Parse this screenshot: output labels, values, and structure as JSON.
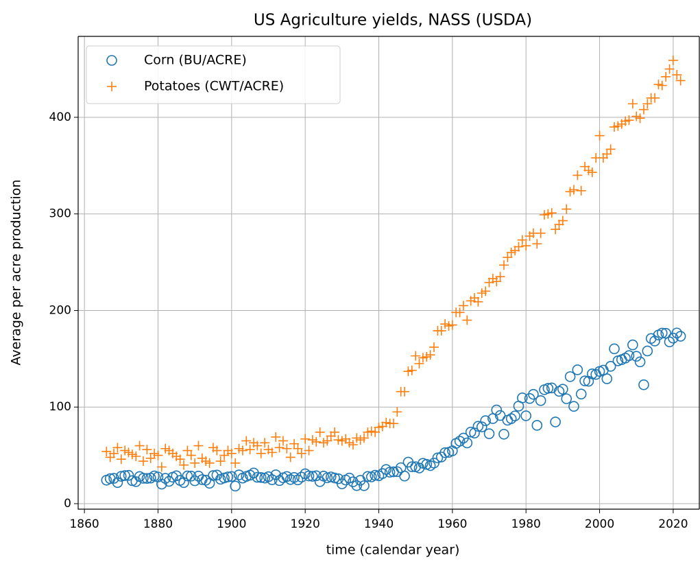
{
  "chart_data": {
    "type": "scatter",
    "title": "US Agriculture yields, NASS (USDA)",
    "x_label": "time (calendar year)",
    "y_label": "Average per acre production",
    "x": [
      1866,
      1867,
      1868,
      1869,
      1870,
      1871,
      1872,
      1873,
      1874,
      1875,
      1876,
      1877,
      1878,
      1879,
      1880,
      1881,
      1882,
      1883,
      1884,
      1885,
      1886,
      1887,
      1888,
      1889,
      1890,
      1891,
      1892,
      1893,
      1894,
      1895,
      1896,
      1897,
      1898,
      1899,
      1900,
      1901,
      1902,
      1903,
      1904,
      1905,
      1906,
      1907,
      1908,
      1909,
      1910,
      1911,
      1912,
      1913,
      1914,
      1915,
      1916,
      1917,
      1918,
      1919,
      1920,
      1921,
      1922,
      1923,
      1924,
      1925,
      1926,
      1927,
      1928,
      1929,
      1930,
      1931,
      1932,
      1933,
      1934,
      1935,
      1936,
      1937,
      1938,
      1939,
      1940,
      1941,
      1942,
      1943,
      1944,
      1945,
      1946,
      1947,
      1948,
      1949,
      1950,
      1951,
      1952,
      1953,
      1954,
      1955,
      1956,
      1957,
      1958,
      1959,
      1960,
      1961,
      1962,
      1963,
      1964,
      1965,
      1966,
      1967,
      1968,
      1969,
      1970,
      1971,
      1972,
      1973,
      1974,
      1975,
      1976,
      1977,
      1978,
      1979,
      1980,
      1981,
      1982,
      1983,
      1984,
      1985,
      1986,
      1987,
      1988,
      1989,
      1990,
      1991,
      1992,
      1993,
      1994,
      1995,
      1996,
      1997,
      1998,
      1999,
      2000,
      2001,
      2002,
      2003,
      2004,
      2005,
      2006,
      2007,
      2008,
      2009,
      2010,
      2011,
      2012,
      2013,
      2014,
      2015,
      2016,
      2017,
      2018,
      2019,
      2020,
      2021,
      2022
    ],
    "series": [
      {
        "name": "Corn (BU/ACRE)",
        "color": "#1f77b4",
        "marker": "o",
        "values": [
          24.3,
          25.9,
          26.2,
          21.8,
          28.3,
          29.1,
          29.3,
          23.8,
          22.8,
          28.1,
          26.3,
          26.1,
          26.5,
          28.7,
          27.6,
          20.2,
          26.2,
          23.1,
          27.4,
          28.9,
          24.1,
          21.8,
          28.7,
          28.5,
          23.7,
          28.5,
          24.9,
          24.3,
          21.1,
          29.1,
          29.6,
          25.3,
          26.6,
          27.7,
          28.1,
          18.2,
          29.8,
          26.5,
          28.2,
          29.5,
          31.7,
          27.3,
          27.1,
          26.5,
          27.9,
          24.8,
          29.9,
          23.9,
          26.8,
          28.1,
          25.0,
          27.1,
          24.6,
          27.5,
          30.9,
          28.7,
          28.3,
          28.9,
          22.8,
          28.5,
          26.8,
          27.7,
          26.6,
          25.8,
          20.5,
          24.5,
          26.5,
          22.6,
          18.7,
          24.2,
          18.6,
          28.2,
          27.7,
          29.4,
          28.9,
          31.2,
          35.4,
          32.6,
          33.0,
          33.1,
          37.2,
          28.6,
          43.0,
          38.2,
          38.2,
          36.9,
          41.8,
          40.7,
          39.4,
          42.0,
          47.4,
          48.3,
          52.8,
          53.1,
          54.7,
          62.4,
          64.7,
          67.9,
          62.9,
          74.1,
          73.1,
          80.1,
          79.5,
          85.9,
          72.4,
          88.1,
          97.0,
          91.3,
          71.9,
          86.4,
          88.0,
          90.8,
          101.0,
          109.5,
          91.0,
          108.9,
          113.2,
          81.1,
          106.7,
          118.0,
          119.4,
          119.8,
          84.6,
          116.3,
          118.5,
          108.6,
          131.5,
          100.7,
          138.6,
          113.5,
          127.1,
          126.7,
          134.4,
          133.8,
          136.9,
          138.2,
          129.3,
          142.2,
          160.3,
          147.9,
          149.1,
          150.7,
          153.3,
          164.4,
          152.6,
          146.8,
          123.1,
          158.1,
          171.0,
          168.4,
          174.6,
          176.6,
          176.4,
          167.5,
          171.4,
          176.7,
          173.3
        ]
      },
      {
        "name": "Potatoes (CWT/ACRE)",
        "color": "#ff7f0e",
        "marker": "+",
        "values": [
          54,
          48,
          52,
          58,
          46,
          55,
          53,
          51,
          49,
          60,
          44,
          56,
          47,
          52,
          50,
          38,
          57,
          55,
          52,
          49,
          46,
          40,
          55,
          50,
          42,
          60,
          47,
          44,
          42,
          58,
          55,
          44,
          50,
          55,
          52,
          42,
          57,
          55,
          65,
          56,
          63,
          60,
          52,
          63,
          56,
          53,
          69,
          58,
          65,
          57,
          48,
          62,
          57,
          52,
          67,
          55,
          66,
          64,
          74,
          63,
          65,
          70,
          74,
          66,
          65,
          67,
          63,
          61,
          68,
          66,
          68,
          74,
          75,
          74,
          79,
          80,
          84,
          83,
          83,
          95,
          116,
          116,
          137,
          138,
          153,
          145,
          151,
          152,
          154,
          162,
          179,
          179,
          186,
          184,
          185,
          198,
          198,
          205,
          190,
          210,
          213,
          209,
          218,
          220,
          229,
          233,
          230,
          235,
          247,
          255,
          260,
          262,
          266,
          273,
          267,
          277,
          280,
          269,
          280,
          299,
          300,
          301,
          284,
          289,
          293,
          305,
          323,
          325,
          340,
          324,
          349,
          345,
          343,
          358,
          381,
          358,
          362,
          367,
          390,
          391,
          393,
          396,
          397,
          414,
          401,
          399,
          408,
          414,
          420,
          420,
          434,
          433,
          442,
          450,
          459,
          444,
          438
        ]
      }
    ],
    "xlim": [
      1858.3,
      2027.1
    ],
    "ylim": [
      -5.7,
      483.8
    ],
    "xticks": [
      1860,
      1880,
      1900,
      1920,
      1940,
      1960,
      1980,
      2000,
      2020
    ],
    "yticks": [
      0,
      100,
      200,
      300,
      400
    ],
    "grid": true,
    "legend": "upper left"
  }
}
